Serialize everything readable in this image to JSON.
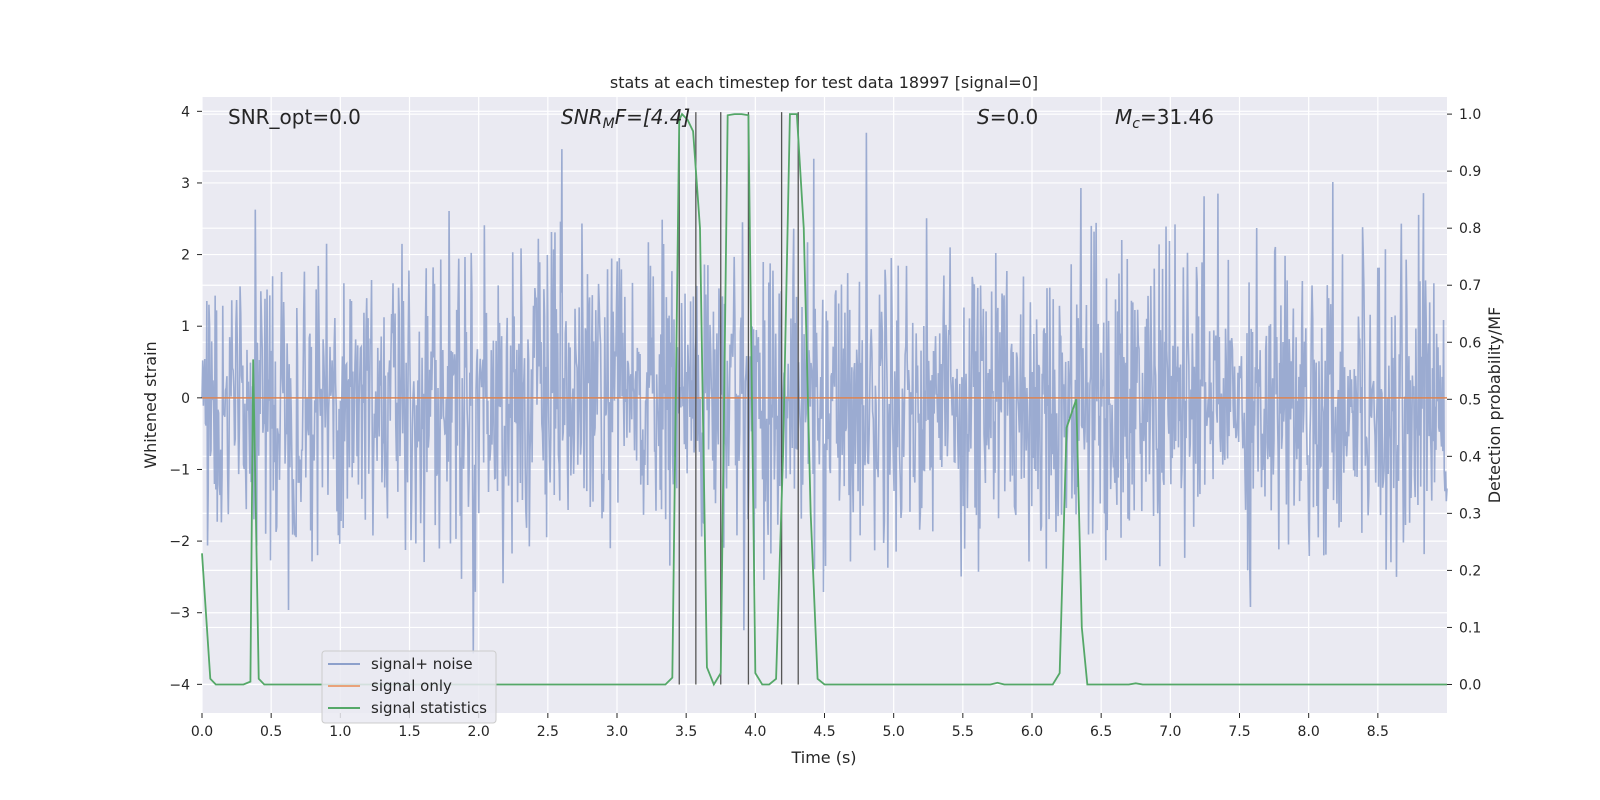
{
  "chart_data": {
    "type": "line",
    "title": "stats at each timestep for test data 18997 [signal=0]",
    "xlabel": "Time (s)",
    "ylabel_left": "Whitened strain",
    "ylabel_right": "Detection probability/MF",
    "xlim": [
      0.0,
      9.0
    ],
    "ylim_left": [
      -4.4,
      4.2
    ],
    "ylim_right": [
      -0.05,
      1.03
    ],
    "grid": true,
    "x_ticks": [
      "0.0",
      "0.5",
      "1.0",
      "1.5",
      "2.0",
      "2.5",
      "3.0",
      "3.5",
      "4.0",
      "4.5",
      "5.0",
      "5.5",
      "6.0",
      "6.5",
      "7.0",
      "7.5",
      "8.0",
      "8.5"
    ],
    "y_left_ticks": [
      "4",
      "3",
      "2",
      "1",
      "0",
      "−1",
      "−2",
      "−3",
      "−4"
    ],
    "y_right_ticks": [
      "1.0",
      "0.9",
      "0.8",
      "0.7",
      "0.6",
      "0.5",
      "0.4",
      "0.3",
      "0.2",
      "0.1",
      "0.0"
    ],
    "annotations": {
      "snr_opt": "SNR_opt=0.0",
      "snr_mf_main": "SNR",
      "snr_mf_sub": "M",
      "snr_mf_rest": "F=[4.4]",
      "s_main": "S",
      "s_rest": "=0.0",
      "mc_main": "M",
      "mc_sub": "c",
      "mc_rest": "=31.46"
    },
    "legend": {
      "position": "lower-left",
      "entries": [
        {
          "label": "signal+ noise",
          "color": "#8da0cb"
        },
        {
          "label": "signal only",
          "color": "#e9a27a"
        },
        {
          "label": "signal statistics",
          "color": "#55a868"
        }
      ]
    },
    "series": [
      {
        "name": "signal+ noise",
        "axis": "left",
        "style": "dense noise trace, std ~1.0, peaks to about ±3.7",
        "color": "#8da0cb",
        "seed": 18997,
        "n": 1800,
        "x_range": [
          0.0,
          9.0
        ]
      },
      {
        "name": "signal only",
        "axis": "left",
        "color": "#dd8452",
        "x": [
          0.0,
          9.0
        ],
        "y": [
          0.0,
          0.0
        ]
      },
      {
        "name": "signal statistics",
        "axis": "right",
        "color": "#55a868",
        "x": [
          0.0,
          0.06,
          0.1,
          0.25,
          0.3,
          0.35,
          0.37,
          0.41,
          0.45,
          0.5,
          0.6,
          1.0,
          2.0,
          3.0,
          3.35,
          3.4,
          3.45,
          3.47,
          3.51,
          3.55,
          3.6,
          3.65,
          3.7,
          3.75,
          3.8,
          3.85,
          3.9,
          3.95,
          4.0,
          4.05,
          4.1,
          4.15,
          4.2,
          4.25,
          4.3,
          4.35,
          4.4,
          4.45,
          4.5,
          5.0,
          5.5,
          5.7,
          5.75,
          5.8,
          6.0,
          6.15,
          6.2,
          6.25,
          6.32,
          6.36,
          6.4,
          6.45,
          6.5,
          6.7,
          6.75,
          6.8,
          7.0,
          8.0,
          9.0
        ],
        "y": [
          0.23,
          0.01,
          0.0,
          0.0,
          0.0,
          0.005,
          0.57,
          0.01,
          0.0,
          0.0,
          0.0,
          0.0,
          0.0,
          0.0,
          0.0,
          0.012,
          0.99,
          1.0,
          0.99,
          0.97,
          0.8,
          0.03,
          0.0,
          0.02,
          0.998,
          1.0,
          1.0,
          0.998,
          0.02,
          0.0,
          0.0,
          0.01,
          0.4,
          1.0,
          1.0,
          0.8,
          0.3,
          0.01,
          0.0,
          0.0,
          0.0,
          0.0,
          0.003,
          0.0,
          0.0,
          0.0,
          0.02,
          0.45,
          0.5,
          0.1,
          0.0,
          0.0,
          0.0,
          0.0,
          0.002,
          0.0,
          0.0,
          0.0,
          0.0
        ]
      }
    ],
    "vertical_lines_x": [
      3.45,
      3.57,
      3.75,
      3.95,
      4.19,
      4.31
    ]
  }
}
